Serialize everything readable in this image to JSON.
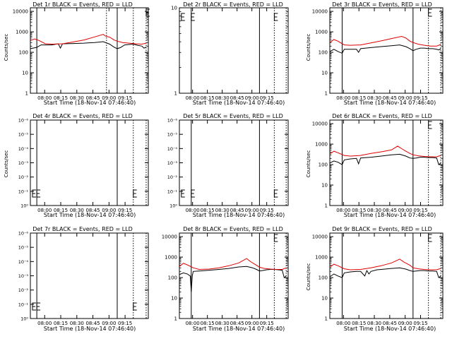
{
  "chart_data": [
    {
      "type": "line",
      "title": "Det 1r BLACK = Events, RED = LLD",
      "xlabel": "Start Time (18-Nov-14 07:46:40)",
      "ylabel": "Counts/sec",
      "y_scale": "log",
      "ytick_labels": [
        "1",
        "10",
        "100",
        "1000",
        "10000"
      ],
      "xtick_labels": [
        "08:00",
        "08:15",
        "08:30",
        "08:45",
        "09:00",
        "09:15"
      ],
      "xlim_minutes": [
        0,
        110
      ],
      "ylim": [
        1,
        15000
      ],
      "solid_vlines_minutes": [
        6,
        81
      ],
      "dotted_vlines_minutes": [
        71,
        96,
        108
      ],
      "tick_marks_minutes": [
        108
      ],
      "series": [
        {
          "color": "#000000",
          "x_minutes": [
            0,
            5,
            6,
            10,
            14,
            20,
            26,
            28,
            30,
            40,
            50,
            60,
            68,
            74,
            78,
            81,
            84,
            88,
            92,
            96,
            100,
            104,
            106,
            108
          ],
          "values": [
            150,
            170,
            175,
            230,
            230,
            230,
            260,
            160,
            260,
            270,
            280,
            300,
            330,
            250,
            180,
            150,
            170,
            230,
            240,
            250,
            220,
            200,
            160,
            180
          ]
        },
        {
          "color": "#e00000",
          "x_minutes": [
            0,
            4,
            8,
            14,
            20,
            30,
            40,
            50,
            60,
            68,
            70,
            74,
            78,
            81,
            86,
            92,
            98,
            104,
            108
          ],
          "values": [
            380,
            450,
            380,
            260,
            250,
            260,
            320,
            400,
            570,
            750,
            620,
            550,
            400,
            350,
            300,
            280,
            260,
            250,
            280
          ]
        }
      ]
    },
    {
      "type": "line",
      "title": "Det 2r BLACK = Events, RED = LLD",
      "xlabel": "Start Time (18-Nov-14 07:46:40)",
      "ylabel": "Counts/sec",
      "y_scale": "log",
      "ytick_labels": [
        "1",
        "10"
      ],
      "xtick_labels": [
        "08:00",
        "08:15",
        "08:30",
        "08:45",
        "09:00",
        "09:15"
      ],
      "xlim_minutes": [
        0,
        110
      ],
      "ylim": [
        1,
        10
      ],
      "solid_vlines_minutes": [
        12,
        81
      ],
      "dotted_vlines_minutes": [
        96,
        108
      ],
      "tick_marks_minutes": [
        2,
        12,
        96
      ],
      "series": []
    },
    {
      "type": "line",
      "title": "Det 3r BLACK = Events, RED = LLD",
      "xlabel": "Start Time (18-Nov-14 07:46:40)",
      "ylabel": "Counts/sec",
      "y_scale": "log",
      "ytick_labels": [
        "1",
        "10",
        "100",
        "1000",
        "10000"
      ],
      "xtick_labels": [
        "08:00",
        "08:15",
        "08:30",
        "08:45",
        "09:00",
        "09:15"
      ],
      "xlim_minutes": [
        0,
        110
      ],
      "ylim": [
        1,
        15000
      ],
      "solid_vlines_minutes": [
        12,
        81
      ],
      "dotted_vlines_minutes": [
        96,
        108
      ],
      "tick_marks_minutes": [
        96
      ],
      "series": [
        {
          "color": "#000000",
          "x_minutes": [
            0,
            4,
            8,
            12,
            14,
            20,
            26,
            28,
            30,
            40,
            50,
            60,
            68,
            74,
            78,
            81,
            84,
            88,
            92,
            96,
            100,
            104,
            106,
            108
          ],
          "values": [
            110,
            140,
            110,
            90,
            140,
            140,
            140,
            100,
            150,
            170,
            190,
            210,
            230,
            190,
            150,
            120,
            140,
            160,
            160,
            150,
            150,
            140,
            130,
            150
          ]
        },
        {
          "color": "#e00000",
          "x_minutes": [
            0,
            4,
            8,
            14,
            20,
            30,
            40,
            50,
            60,
            70,
            74,
            78,
            81,
            86,
            92,
            98,
            104,
            108
          ],
          "values": [
            300,
            420,
            350,
            230,
            220,
            230,
            290,
            360,
            470,
            600,
            500,
            350,
            300,
            250,
            220,
            200,
            200,
            240
          ]
        }
      ]
    },
    {
      "type": "line",
      "title": "Det 4r BLACK = Events, RED = LLD",
      "xlabel": "Start Time (18-Nov-14 07:46:40)",
      "ylabel": "Counts/sec",
      "y_scale": "log",
      "ytick_labels": [
        "10⁰",
        "10⁻¹",
        "10⁻²",
        "10⁻³",
        "10⁻⁴",
        "10⁻⁵",
        "10⁻⁶"
      ],
      "xtick_labels": [
        "08:00",
        "08:15",
        "08:30",
        "08:45",
        "09:00",
        "09:15"
      ],
      "xlim_minutes": [
        0,
        110
      ],
      "solid_vlines_minutes": [
        6,
        81
      ],
      "dotted_vlines_minutes": [
        96,
        108
      ],
      "tick_marks_minutes": [
        2,
        6,
        96
      ],
      "series": []
    },
    {
      "type": "line",
      "title": "Det 5r BLACK = Events, RED = LLD",
      "xlabel": "Start Time (18-Nov-14 07:46:40)",
      "ylabel": "Counts/sec",
      "y_scale": "log",
      "ytick_labels": [
        "10⁰",
        "10⁻¹",
        "10⁻²",
        "10⁻³",
        "10⁻⁴",
        "10⁻⁵",
        "10⁻⁶"
      ],
      "xtick_labels": [
        "08:00",
        "08:15",
        "08:30",
        "08:45",
        "09:00",
        "09:15"
      ],
      "xlim_minutes": [
        0,
        110
      ],
      "solid_vlines_minutes": [
        12,
        81
      ],
      "dotted_vlines_minutes": [
        96,
        108
      ],
      "tick_marks_minutes": [
        2,
        12,
        96
      ],
      "series": []
    },
    {
      "type": "line",
      "title": "Det 6r BLACK = Events, RED = LLD",
      "xlabel": "Start Time (18-Nov-14 07:46:40)",
      "ylabel": "Counts/sec",
      "y_scale": "log",
      "ytick_labels": [
        "1",
        "10",
        "100",
        "1000",
        "10000"
      ],
      "xtick_labels": [
        "08:00",
        "08:15",
        "08:30",
        "08:45",
        "09:00",
        "09:15"
      ],
      "xlim_minutes": [
        0,
        110
      ],
      "ylim": [
        1,
        15000
      ],
      "solid_vlines_minutes": [
        12,
        81
      ],
      "dotted_vlines_minutes": [
        96,
        108
      ],
      "tick_marks_minutes": [
        96
      ],
      "series": [
        {
          "color": "#000000",
          "x_minutes": [
            0,
            4,
            8,
            12,
            14,
            20,
            26,
            28,
            30,
            40,
            50,
            60,
            68,
            74,
            78,
            81,
            84,
            88,
            92,
            96,
            100,
            104,
            106,
            108
          ],
          "values": [
            120,
            150,
            130,
            100,
            170,
            190,
            200,
            110,
            210,
            230,
            260,
            300,
            320,
            260,
            210,
            200,
            210,
            230,
            230,
            220,
            220,
            210,
            100,
            120
          ]
        },
        {
          "color": "#e00000",
          "x_minutes": [
            0,
            4,
            8,
            14,
            20,
            30,
            40,
            50,
            60,
            66,
            70,
            74,
            78,
            81,
            86,
            92,
            98,
            104,
            108
          ],
          "values": [
            330,
            450,
            380,
            280,
            260,
            280,
            350,
            420,
            520,
            800,
            600,
            450,
            350,
            300,
            270,
            250,
            240,
            240,
            280
          ]
        }
      ]
    },
    {
      "type": "line",
      "title": "Det 7r BLACK = Events, RED = LLD",
      "xlabel": "Start Time (18-Nov-14 07:46:40)",
      "ylabel": "Counts/sec",
      "y_scale": "log",
      "ytick_labels": [
        "10⁰",
        "10⁻¹",
        "10⁻²",
        "10⁻³",
        "10⁻⁴",
        "10⁻⁵",
        "10⁻⁶"
      ],
      "xtick_labels": [
        "08:00",
        "08:15",
        "08:30",
        "08:45",
        "09:00",
        "09:15"
      ],
      "xlim_minutes": [
        0,
        110
      ],
      "solid_vlines_minutes": [
        6,
        81
      ],
      "dotted_vlines_minutes": [
        96,
        108
      ],
      "tick_marks_minutes": [
        2,
        6,
        96
      ],
      "series": []
    },
    {
      "type": "line",
      "title": "Det 8r BLACK = Events, RED = LLD",
      "xlabel": "Start Time (18-Nov-14 07:46:40)",
      "ylabel": "Counts/sec",
      "y_scale": "log",
      "ytick_labels": [
        "1",
        "10",
        "100",
        "1000",
        "10000"
      ],
      "xtick_labels": [
        "08:00",
        "08:15",
        "08:30",
        "08:45",
        "09:00",
        "09:15"
      ],
      "xlim_minutes": [
        0,
        110
      ],
      "ylim": [
        1,
        15000
      ],
      "solid_vlines_minutes": [
        12,
        81
      ],
      "dotted_vlines_minutes": [
        96,
        108
      ],
      "tick_marks_minutes": [
        96
      ],
      "series": [
        {
          "color": "#000000",
          "x_minutes": [
            0,
            4,
            8,
            11,
            12,
            13,
            14,
            20,
            26,
            30,
            40,
            50,
            60,
            68,
            74,
            78,
            81,
            84,
            88,
            92,
            96,
            100,
            104,
            106,
            108
          ],
          "values": [
            140,
            170,
            150,
            120,
            20,
            120,
            200,
            210,
            220,
            230,
            250,
            280,
            330,
            350,
            300,
            250,
            210,
            220,
            240,
            250,
            250,
            240,
            230,
            100,
            120
          ]
        },
        {
          "color": "#e00000",
          "x_minutes": [
            0,
            4,
            8,
            14,
            20,
            30,
            40,
            50,
            60,
            68,
            72,
            78,
            81,
            86,
            92,
            98,
            104,
            108
          ],
          "values": [
            350,
            500,
            420,
            300,
            250,
            260,
            300,
            380,
            520,
            850,
            600,
            400,
            320,
            280,
            260,
            250,
            250,
            300
          ]
        }
      ]
    },
    {
      "type": "line",
      "title": "Det 9r BLACK = Events, RED = LLD",
      "xlabel": "Start Time (18-Nov-14 07:46:40)",
      "ylabel": "Counts/sec",
      "y_scale": "log",
      "ytick_labels": [
        "1",
        "10",
        "100",
        "1000",
        "10000"
      ],
      "xtick_labels": [
        "08:00",
        "08:15",
        "08:30",
        "08:45",
        "09:00",
        "09:15"
      ],
      "xlim_minutes": [
        0,
        110
      ],
      "ylim": [
        1,
        15000
      ],
      "solid_vlines_minutes": [
        12,
        81
      ],
      "dotted_vlines_minutes": [
        96,
        108
      ],
      "tick_marks_minutes": [
        96
      ],
      "series": [
        {
          "color": "#000000",
          "x_minutes": [
            0,
            4,
            8,
            12,
            14,
            20,
            26,
            30,
            34,
            36,
            38,
            40,
            46,
            50,
            60,
            68,
            74,
            78,
            81,
            84,
            88,
            92,
            96,
            100,
            104,
            106,
            108
          ],
          "values": [
            110,
            150,
            120,
            100,
            170,
            190,
            200,
            200,
            120,
            220,
            150,
            200,
            240,
            250,
            280,
            300,
            260,
            220,
            200,
            210,
            220,
            220,
            210,
            210,
            200,
            100,
            120
          ]
        },
        {
          "color": "#e00000",
          "x_minutes": [
            0,
            4,
            8,
            14,
            20,
            30,
            40,
            50,
            60,
            68,
            72,
            78,
            81,
            86,
            92,
            98,
            104,
            108
          ],
          "values": [
            320,
            450,
            380,
            270,
            240,
            250,
            300,
            380,
            520,
            800,
            580,
            400,
            300,
            270,
            250,
            240,
            240,
            280
          ]
        }
      ]
    }
  ]
}
